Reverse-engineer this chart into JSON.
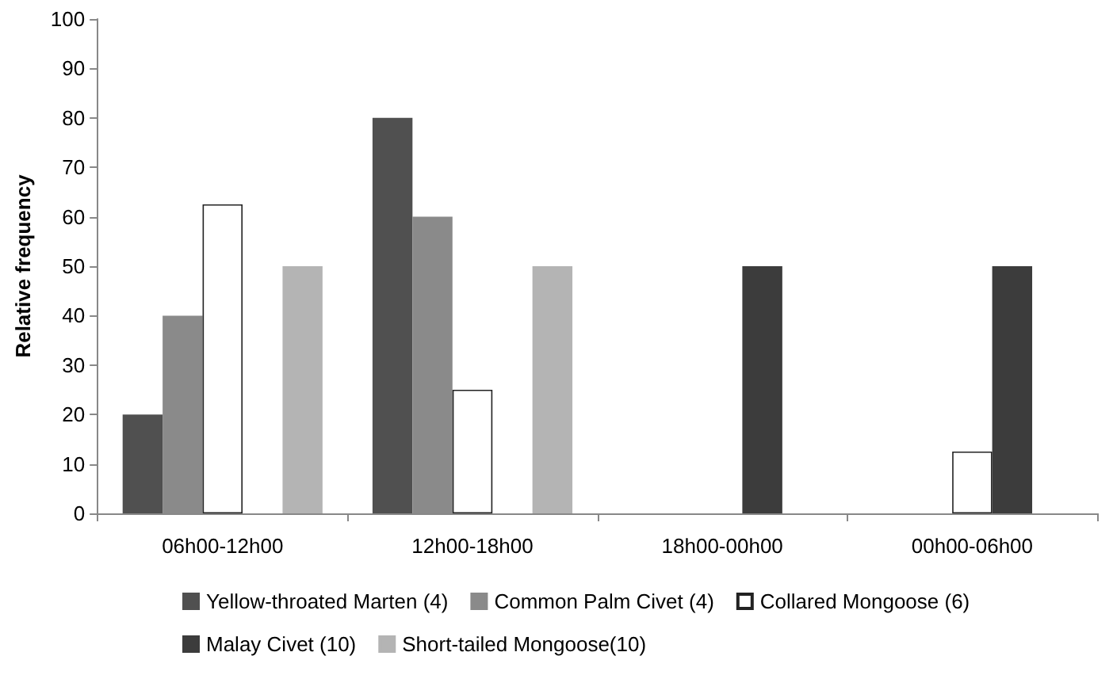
{
  "chart_data": {
    "type": "bar",
    "ylabel": "Relative frequency",
    "categories": [
      "06h00-12h00",
      "12h00-18h00",
      "18h00-00h00",
      "00h00-06h00"
    ],
    "series": [
      {
        "name": "Yellow-throated Marten (4)",
        "color": "#505050",
        "values": [
          20,
          80,
          0,
          0
        ]
      },
      {
        "name": "Common Palm Civet (4)",
        "color": "#8a8a8a",
        "values": [
          40,
          60,
          0,
          0
        ]
      },
      {
        "name": "Collared Mongoose (6)",
        "color": "#ffffff",
        "values": [
          62.5,
          25,
          0,
          12.5
        ]
      },
      {
        "name": "Malay Civet (10)",
        "color": "#3c3c3c",
        "values": [
          0,
          0,
          50,
          50
        ]
      },
      {
        "name": "Short-tailed Mongoose(10)",
        "color": "#b4b4b4",
        "values": [
          50,
          50,
          0,
          0
        ]
      }
    ],
    "ylim": [
      0,
      100
    ],
    "yticks": [
      0,
      10,
      20,
      30,
      40,
      50,
      60,
      70,
      80,
      90,
      100
    ],
    "grid": false,
    "legend": "bottom"
  }
}
